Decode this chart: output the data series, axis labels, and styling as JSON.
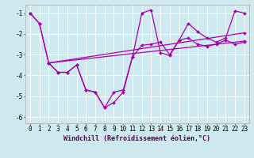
{
  "background_color": "#cfe9f0",
  "grid_color": "#ffffff",
  "line_color": "#aa00aa",
  "marker_color": "#aa00aa",
  "xlabel": "Windchill (Refroidissement éolien,°C)",
  "xlim": [
    -0.5,
    23.5
  ],
  "ylim": [
    -6.3,
    -0.6
  ],
  "yticks": [
    -6,
    -5,
    -4,
    -3,
    -2,
    -1
  ],
  "xticks": [
    0,
    1,
    2,
    3,
    4,
    5,
    6,
    7,
    8,
    9,
    10,
    11,
    12,
    13,
    14,
    15,
    16,
    17,
    18,
    19,
    20,
    21,
    22,
    23
  ],
  "series1": {
    "x": [
      0,
      1,
      2,
      3,
      4,
      5,
      6,
      7,
      8,
      9,
      10,
      11,
      12,
      13,
      14,
      15,
      16,
      17,
      18,
      19,
      20,
      21,
      22,
      23
    ],
    "y": [
      -1.0,
      -1.5,
      -3.4,
      -3.85,
      -3.85,
      -3.5,
      -4.7,
      -4.8,
      -5.55,
      -5.3,
      -4.8,
      -3.1,
      -2.55,
      -2.5,
      -2.4,
      -3.0,
      -2.3,
      -2.2,
      -2.5,
      -2.6,
      -2.5,
      -2.3,
      -2.5,
      -2.4
    ]
  },
  "series2": {
    "x": [
      0,
      1,
      2,
      3,
      4,
      5,
      6,
      7,
      8,
      9,
      10,
      11,
      12,
      13,
      14,
      15,
      16,
      17,
      18,
      19,
      20,
      21,
      22,
      23
    ],
    "y": [
      -1.0,
      -1.5,
      -3.4,
      -3.85,
      -3.85,
      -3.5,
      -4.7,
      -4.8,
      -5.55,
      -4.8,
      -4.7,
      -3.1,
      -1.0,
      -0.85,
      -2.9,
      -3.05,
      -2.3,
      -1.5,
      -1.9,
      -2.2,
      -2.4,
      -2.2,
      -0.9,
      -1.0
    ]
  },
  "series3": {
    "x": [
      2,
      23
    ],
    "y": [
      -3.4,
      -2.35
    ]
  },
  "series4": {
    "x": [
      2,
      23
    ],
    "y": [
      -3.4,
      -1.95
    ]
  },
  "tick_fontsize": 5.5,
  "label_fontsize": 6.0
}
